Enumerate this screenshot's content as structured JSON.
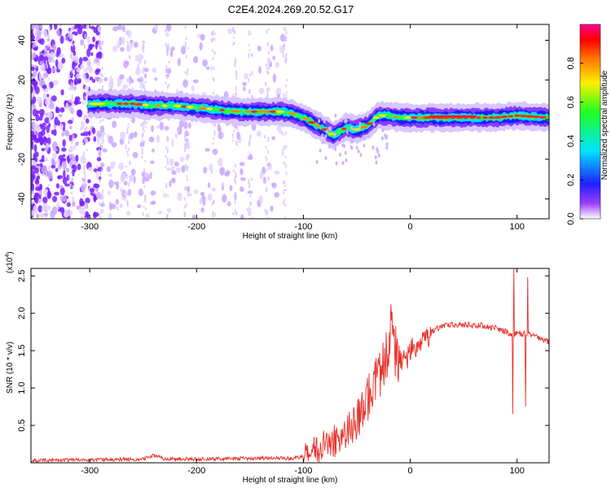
{
  "title": "C2E4.2024.269.20.52.G17",
  "chart_data": [
    {
      "type": "heatmap",
      "xlabel": "Height of straight line (km)",
      "ylabel": "Frequency (Hz)",
      "xlim": [
        -355,
        130
      ],
      "ylim": [
        -50,
        48
      ],
      "x_ticks": [
        -300,
        -200,
        -100,
        0,
        100
      ],
      "x_tick_labels": [
        "-300",
        "-200",
        "-100",
        "0",
        "100"
      ],
      "y_ticks": [
        -40,
        -20,
        0,
        20,
        40
      ],
      "y_tick_labels": [
        "-40",
        "-20",
        "0",
        "20",
        "40"
      ],
      "colorbar": {
        "label": "Normalized spectral amplitude",
        "range": [
          0,
          1
        ],
        "ticks": [
          0.0,
          0.2,
          0.4,
          0.6,
          0.8
        ],
        "tick_labels": [
          "0.0",
          "0.2",
          "0.4",
          "0.6",
          "0.8"
        ],
        "colors": [
          "#ffffff",
          "#8000ff",
          "#0000ff",
          "#00ffff",
          "#00ff00",
          "#ffff00",
          "#ff8000",
          "#ff0000",
          "#ff0080"
        ]
      },
      "ridge": {
        "x": [
          -300,
          -280,
          -260,
          -240,
          -220,
          -200,
          -180,
          -160,
          -140,
          -120,
          -110,
          -100,
          -90,
          -80,
          -72,
          -60,
          -50,
          -40,
          -30,
          -20,
          -10,
          0,
          20,
          50,
          80,
          100,
          130
        ],
        "y": [
          8,
          8,
          8,
          7,
          7,
          6,
          5,
          4,
          4,
          4,
          3,
          1,
          -2,
          -5,
          -8,
          -4,
          -5,
          -3,
          2,
          2,
          1,
          1,
          1,
          1,
          1,
          2,
          1
        ]
      }
    },
    {
      "type": "line",
      "xlabel": "Height of straight line (km)",
      "ylabel": "SNR (10 * v/v)",
      "y_multiplier": "(x10^4)",
      "y_multiplier_base": "(x10",
      "y_multiplier_exp": "4",
      "y_multiplier_close": ")",
      "xlim": [
        -355,
        130
      ],
      "ylim": [
        0,
        2.6
      ],
      "x_ticks": [
        -300,
        -200,
        -100,
        0,
        100
      ],
      "x_tick_labels": [
        "-300",
        "-200",
        "-100",
        "0",
        "100"
      ],
      "y_ticks": [
        0.5,
        1.0,
        1.5,
        2.0,
        2.5
      ],
      "y_tick_labels": [
        "0.5",
        "1.0",
        "1.5",
        "2.0",
        "2.5"
      ],
      "color": "#e8302a",
      "series": [
        {
          "x": [
            -355,
            -300,
            -250,
            -240,
            -230,
            -200,
            -150,
            -110,
            -100,
            -95,
            -90,
            -85,
            -80,
            -75,
            -70,
            -65,
            -60,
            -55,
            -50,
            -45,
            -40,
            -35,
            -30,
            -25,
            -20,
            -18,
            -15,
            -10,
            -5,
            0,
            5,
            10,
            15,
            20,
            25,
            30,
            40,
            50,
            60,
            70,
            80,
            90,
            95,
            97,
            100,
            105,
            108,
            110,
            115,
            120,
            130
          ],
          "y": [
            0.03,
            0.04,
            0.05,
            0.1,
            0.05,
            0.05,
            0.06,
            0.06,
            0.08,
            0.15,
            0.2,
            0.18,
            0.25,
            0.3,
            0.3,
            0.35,
            0.45,
            0.5,
            0.6,
            0.7,
            0.85,
            1.0,
            1.15,
            1.3,
            1.5,
            1.75,
            1.55,
            1.45,
            1.35,
            1.5,
            1.55,
            1.65,
            1.7,
            1.75,
            1.8,
            1.82,
            1.85,
            1.85,
            1.84,
            1.83,
            1.8,
            1.75,
            1.72,
            1.7,
            1.75,
            1.72,
            1.73,
            1.72,
            1.7,
            1.67,
            1.62
          ]
        }
      ],
      "spikes": [
        {
          "x": -17,
          "y": 2.02
        },
        {
          "x": 96,
          "y": 0.65
        },
        {
          "x": 97,
          "y": 2.6
        },
        {
          "x": 108,
          "y": 0.75
        },
        {
          "x": 110,
          "y": 2.48
        }
      ]
    }
  ]
}
